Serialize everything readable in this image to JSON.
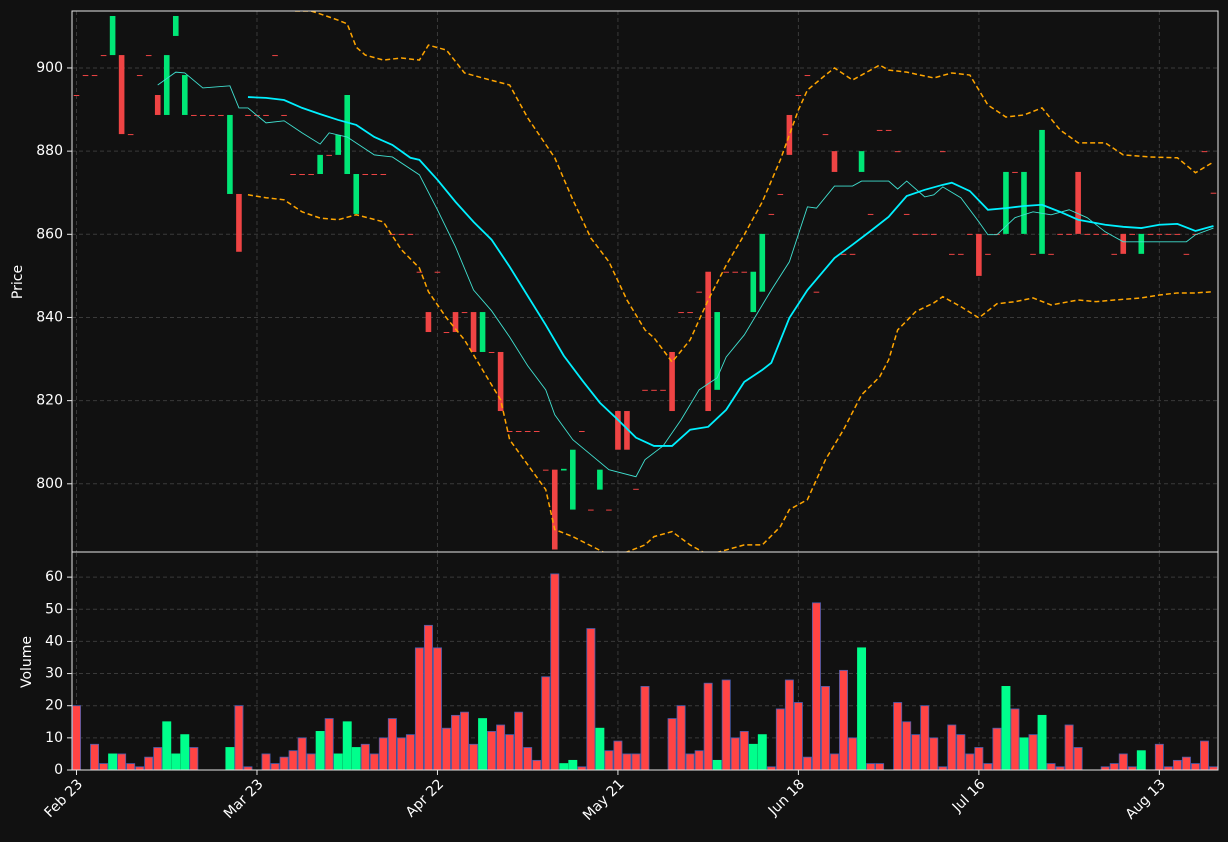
{
  "chart_data": [
    {
      "type": "candlestick",
      "ylabel": "Price",
      "ylim": [
        783.6,
        913.7
      ],
      "yticks": [
        800,
        820,
        840,
        860,
        880,
        900
      ],
      "xlim": [
        -0.5,
        126.5
      ],
      "grid": true,
      "up_color": "#00e676",
      "down_color": "#ef4444",
      "open": [
        893.5,
        898.3,
        898.3,
        903.1,
        903.1,
        903.1,
        884.1,
        898.3,
        903.1,
        893.5,
        888.7,
        907.7,
        888.7,
        888.7,
        888.7,
        888.7,
        888.7,
        869.7,
        869.7,
        888.7,
        888.7,
        888.7,
        903.1,
        888.7,
        874.5,
        874.5,
        874.5,
        874.5,
        879.1,
        879.1,
        874.5,
        864.9,
        874.5,
        874.5,
        874.5,
        860.1,
        860.1,
        860.1,
        851.0,
        841.3,
        851.0,
        836.5,
        841.3,
        841.3,
        841.3,
        831.7,
        831.7,
        831.7,
        812.7,
        812.7,
        812.7,
        812.7,
        803.4,
        803.4,
        803.2,
        793.8,
        812.7,
        793.8,
        798.6,
        793.8,
        817.5,
        817.5,
        798.8,
        822.6,
        822.6,
        822.6,
        831.7,
        841.3,
        841.3,
        846.2,
        851.0,
        822.6,
        851.0,
        851.0,
        851.0,
        841.3,
        846.2,
        864.9,
        869.7,
        888.7,
        893.5,
        898.3,
        846.2,
        884.1,
        880.0,
        855.3,
        855.3,
        875.0,
        864.9,
        885.1,
        885.1,
        880.0,
        864.9,
        860.1,
        860.1,
        860.1,
        880.0,
        855.3,
        855.3,
        860.1,
        860.1,
        855.3,
        860.1,
        860.1,
        875.0,
        860.1,
        855.3,
        855.3,
        855.3,
        860.1,
        860.1,
        875.0,
        860.1,
        860.1,
        860.1,
        855.3,
        860.1,
        860.1,
        855.3,
        860.1,
        860.1,
        860.1,
        860.1,
        855.3,
        860.1,
        880.0,
        870.0
      ],
      "close": [
        893.5,
        898.3,
        898.3,
        903.1,
        912.5,
        884.1,
        884.1,
        898.3,
        903.1,
        888.7,
        903.1,
        912.5,
        898.3,
        888.7,
        888.7,
        888.7,
        888.7,
        888.7,
        855.8,
        888.7,
        888.7,
        888.7,
        903.1,
        888.7,
        874.5,
        874.5,
        874.5,
        879.1,
        879.1,
        883.9,
        893.5,
        874.5,
        874.5,
        874.5,
        874.5,
        860.1,
        860.1,
        860.1,
        851.0,
        836.5,
        851.0,
        836.5,
        836.5,
        841.3,
        831.7,
        841.3,
        831.7,
        817.5,
        812.7,
        812.7,
        812.7,
        812.7,
        803.4,
        784.2,
        803.6,
        808.2,
        812.7,
        793.8,
        803.4,
        793.8,
        808.2,
        808.2,
        798.8,
        822.6,
        822.6,
        822.6,
        817.5,
        841.3,
        841.3,
        846.2,
        817.5,
        841.3,
        851.0,
        851.0,
        851.0,
        851.0,
        860.1,
        864.9,
        869.7,
        879.1,
        893.5,
        898.3,
        846.2,
        884.1,
        875.0,
        855.3,
        855.3,
        880.0,
        864.9,
        885.1,
        885.1,
        880.0,
        864.9,
        860.1,
        860.1,
        860.1,
        880.0,
        855.3,
        855.3,
        860.1,
        850.0,
        855.3,
        860.1,
        875.0,
        875.0,
        875.0,
        855.3,
        885.1,
        855.3,
        860.1,
        860.1,
        860.1,
        860.1,
        860.1,
        860.1,
        855.3,
        855.3,
        860.1,
        860.1,
        860.1,
        860.1,
        860.1,
        860.1,
        855.3,
        860.1,
        880.0,
        870.0
      ],
      "lines": [
        {
          "color": "#40e0d0",
          "dashed": false,
          "x": [
            9,
            11,
            12,
            14,
            17,
            18,
            19,
            21,
            23,
            25,
            27,
            28,
            30,
            33,
            35,
            38,
            40,
            42,
            44,
            46,
            48,
            50,
            52,
            53,
            55,
            57,
            59,
            62,
            63,
            65,
            67,
            69,
            71,
            72,
            74,
            77,
            79,
            81,
            82,
            84,
            86,
            87,
            89,
            90,
            91,
            92,
            94,
            95,
            96,
            98,
            100,
            101,
            102,
            104,
            106,
            108,
            110,
            112,
            114,
            116,
            118,
            120,
            122,
            123,
            124,
            126
          ],
          "values": [
            895.9,
            899.0,
            898.8,
            895.2,
            895.7,
            890.4,
            890.4,
            886.8,
            887.3,
            884.4,
            881.7,
            884.4,
            883.4,
            879.1,
            878.6,
            874.3,
            865.9,
            857.0,
            846.6,
            841.6,
            835.3,
            828.4,
            822.6,
            816.6,
            810.6,
            807.0,
            803.4,
            801.7,
            805.8,
            809.1,
            815.4,
            822.6,
            825.5,
            830.5,
            835.8,
            846.6,
            853.4,
            866.6,
            866.3,
            871.6,
            871.6,
            872.8,
            872.8,
            872.8,
            870.9,
            872.8,
            869.0,
            869.5,
            871.4,
            868.8,
            863.0,
            859.9,
            859.9,
            864.0,
            865.4,
            864.7,
            865.9,
            864.0,
            860.6,
            858.2,
            858.2,
            858.2,
            858.2,
            858.2,
            859.9,
            861.5
          ]
        },
        {
          "color": "#00f0ff",
          "dashed": false,
          "x": [
            19,
            21,
            23,
            25,
            27,
            29,
            31,
            33,
            35,
            37,
            38,
            40,
            42,
            44,
            46,
            48,
            50,
            52,
            54,
            56,
            58,
            60,
            62,
            64,
            66,
            68,
            70,
            72,
            74,
            76,
            77,
            79,
            81,
            84,
            86,
            88,
            90,
            92,
            94,
            96,
            97,
            99,
            101,
            103,
            105,
            107,
            109,
            111,
            114,
            116,
            118,
            120,
            122,
            124,
            126
          ],
          "values": [
            893.0,
            892.8,
            892.3,
            890.4,
            888.9,
            887.5,
            886.3,
            883.4,
            881.5,
            878.4,
            877.9,
            873.1,
            867.8,
            863.0,
            858.7,
            852.2,
            845.2,
            838.2,
            830.8,
            825.0,
            819.5,
            815.4,
            811.1,
            809.1,
            809.1,
            813.0,
            813.7,
            817.8,
            824.5,
            827.4,
            829.1,
            839.9,
            846.6,
            854.3,
            857.5,
            860.8,
            864.2,
            869.2,
            870.7,
            871.9,
            872.4,
            870.4,
            865.9,
            866.3,
            866.8,
            867.1,
            865.4,
            863.5,
            862.3,
            861.8,
            861.5,
            862.3,
            862.5,
            860.8,
            862.0
          ]
        },
        {
          "color": "#ffa500",
          "dashed": true,
          "x": [
            19,
            24,
            26,
            27,
            29,
            30,
            31,
            32,
            34,
            36,
            38,
            39,
            41,
            43,
            45,
            48,
            50,
            53,
            55,
            57,
            59,
            61,
            63,
            64,
            66,
            68,
            70,
            72,
            74,
            76,
            78,
            80,
            81,
            83,
            84,
            86,
            87,
            89,
            90,
            92,
            95,
            97,
            99,
            101,
            103,
            105,
            107,
            109,
            111,
            114,
            116,
            119,
            122,
            124,
            126
          ],
          "values": [
            915.9,
            913.7,
            913.7,
            913.0,
            911.5,
            910.6,
            905.0,
            903.1,
            901.9,
            902.4,
            901.9,
            905.5,
            904.3,
            898.8,
            897.6,
            895.9,
            888.0,
            878.4,
            868.3,
            859.1,
            853.4,
            844.2,
            837.0,
            835.1,
            829.3,
            834.6,
            844.2,
            852.6,
            859.9,
            867.8,
            877.9,
            889.9,
            894.7,
            898.3,
            900.0,
            897.1,
            898.3,
            900.7,
            899.5,
            899.0,
            897.6,
            898.8,
            898.3,
            891.1,
            888.2,
            888.7,
            890.4,
            885.1,
            882.0,
            882.0,
            879.1,
            878.6,
            878.4,
            874.8,
            877.4
          ]
        },
        {
          "color": "#ffa500",
          "dashed": true,
          "x": [
            19,
            21,
            23,
            25,
            27,
            29,
            31,
            34,
            36,
            38,
            39,
            41,
            43,
            45,
            47,
            48,
            50,
            52,
            53,
            55,
            57,
            59,
            61,
            63,
            64,
            66,
            68,
            70,
            72,
            74,
            76,
            78,
            79,
            81,
            83,
            85,
            87,
            89,
            90,
            91,
            93,
            95,
            96,
            98,
            100,
            102,
            104,
            106,
            108,
            111,
            113,
            115,
            118,
            120,
            122,
            124,
            126
          ],
          "values": [
            869.5,
            868.8,
            868.3,
            865.4,
            863.9,
            863.5,
            864.7,
            863.0,
            856.3,
            851.9,
            846.2,
            839.9,
            834.6,
            827.4,
            820.2,
            810.6,
            804.6,
            798.6,
            789.0,
            787.3,
            785.1,
            782.9,
            783.6,
            785.3,
            787.3,
            788.5,
            785.3,
            782.9,
            784.1,
            785.3,
            785.3,
            789.7,
            793.8,
            796.2,
            805.8,
            813.0,
            821.4,
            825.7,
            829.8,
            837.0,
            841.4,
            843.5,
            845.0,
            842.6,
            839.9,
            843.3,
            843.8,
            844.7,
            843.0,
            844.2,
            843.8,
            844.2,
            844.7,
            845.4,
            845.9,
            845.9,
            846.2
          ]
        }
      ]
    },
    {
      "type": "bar",
      "ylabel": "Volume",
      "ylim": [
        0,
        67.5
      ],
      "yticks": [
        0,
        10,
        20,
        30,
        40,
        50,
        60
      ],
      "xlim": [
        -0.5,
        126.5
      ],
      "xticks": [
        {
          "value": 0,
          "label": "Feb 23"
        },
        {
          "value": 20,
          "label": "Mar 23"
        },
        {
          "value": 40,
          "label": "Apr 22"
        },
        {
          "value": 60,
          "label": "May 21"
        },
        {
          "value": 80,
          "label": "Jun 18"
        },
        {
          "value": 100,
          "label": "Jul 16"
        },
        {
          "value": 120,
          "label": "Aug 13"
        }
      ],
      "grid": true,
      "up_color": "#00ff8c",
      "down_color": "#ff4444",
      "edge_color": "#4a5fb0",
      "values": [
        20,
        0,
        8,
        2,
        5,
        5,
        2,
        1,
        4,
        7,
        15,
        5,
        11,
        7,
        0,
        0,
        0,
        7,
        20,
        1,
        0,
        5,
        2,
        4,
        6,
        10,
        5,
        12,
        16,
        5,
        15,
        7,
        8,
        5,
        10,
        16,
        10,
        11,
        38,
        45,
        38,
        13,
        17,
        18,
        8,
        16,
        12,
        14,
        11,
        18,
        7,
        3,
        29,
        61,
        2,
        3,
        1,
        44,
        13,
        6,
        9,
        5,
        5,
        26,
        0,
        0,
        16,
        20,
        5,
        6,
        27,
        3,
        28,
        10,
        12,
        8,
        11,
        1,
        19,
        28,
        21,
        4,
        52,
        26,
        5,
        31,
        10,
        38,
        2,
        2,
        0,
        21,
        15,
        11,
        20,
        10,
        1,
        14,
        11,
        5,
        7,
        2,
        13,
        26,
        19,
        10,
        11,
        17,
        2,
        1,
        14,
        7,
        0,
        0,
        1,
        2,
        5,
        1,
        6,
        0,
        8,
        1,
        3,
        4,
        2,
        9,
        1
      ]
    }
  ]
}
